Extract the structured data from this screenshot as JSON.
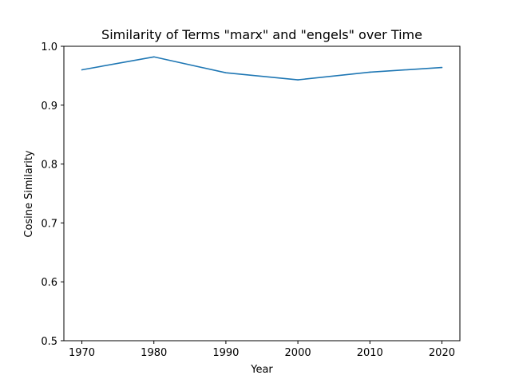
{
  "chart_data": {
    "type": "line",
    "title": "Similarity of Terms \"marx\" and \"engels\" over Time",
    "xlabel": "Year",
    "ylabel": "Cosine Similarity",
    "x": [
      1970,
      1980,
      1990,
      2000,
      2010,
      2020
    ],
    "series": [
      {
        "values": [
          0.96,
          0.982,
          0.955,
          0.943,
          0.956,
          0.964
        ],
        "color": "#1f77b4"
      }
    ],
    "xlim": [
      1967.5,
      2022.5
    ],
    "ylim": [
      0.5,
      1.0
    ],
    "xticks": [
      "1970",
      "1980",
      "1990",
      "2000",
      "2010",
      "2020"
    ],
    "yticks": [
      "0.5",
      "0.6",
      "0.7",
      "0.8",
      "0.9",
      "1.0"
    ],
    "grid": false,
    "legend": "none"
  }
}
